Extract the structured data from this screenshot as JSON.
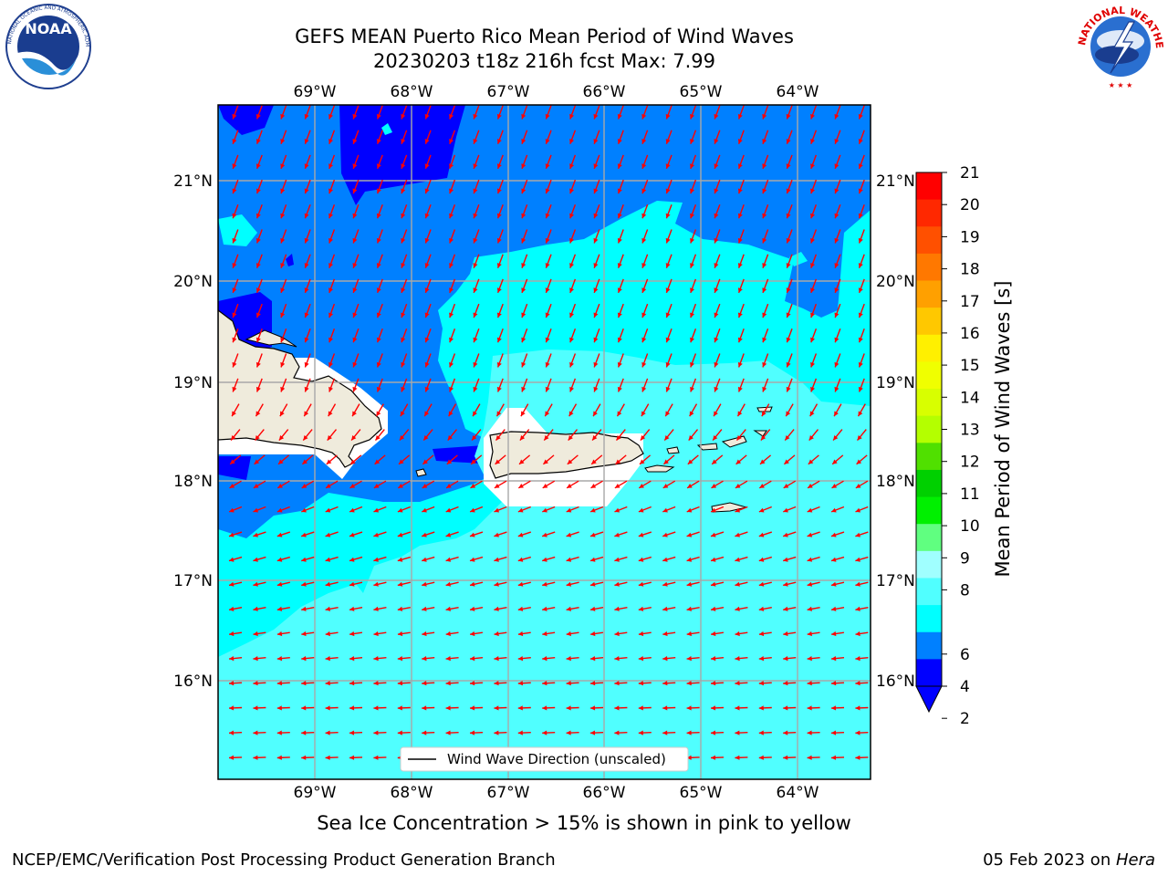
{
  "header": {
    "title_line1": "GEFS MEAN Puerto Rico Mean Period of Wind Waves",
    "title_line2": "20230203 t18z 216h fcst   Max: 7.99"
  },
  "logos": {
    "left": "NOAA",
    "left_ring_text": "NATIONAL OCEANIC AND ATMOSPHERIC ADMINISTRATION · U.S. DEPARTMENT OF COMMERCE",
    "right_ring_text": "NATIONAL WEATHER SERVICE"
  },
  "map": {
    "lon_labels": [
      "69°W",
      "68°W",
      "67°W",
      "66°W",
      "65°W",
      "64°W"
    ],
    "lat_labels": [
      "21°N",
      "20°N",
      "19°N",
      "18°N",
      "17°N",
      "16°N"
    ],
    "legend_label": "Wind Wave Direction (unscaled)",
    "arrow_color": "#ff0000",
    "land_color": "#efebdc",
    "ice_mask_color": "#ffffff"
  },
  "colorbar": {
    "label": "Mean Period of Wind Waves [s]",
    "ticks": [
      "21",
      "20",
      "19",
      "18",
      "17",
      "16",
      "15",
      "14",
      "13",
      "12",
      "11",
      "10",
      "9",
      "8",
      "6",
      "4",
      "2"
    ],
    "colors": [
      "#ff0000",
      "#ff2800",
      "#ff5000",
      "#ff7800",
      "#ffa000",
      "#ffc800",
      "#fff000",
      "#f0ff00",
      "#d8ff00",
      "#b4ff00",
      "#50e000",
      "#00d000",
      "#00f000",
      "#60ff80",
      "#a0ffff",
      "#50ffff",
      "#00ffff",
      "#0080ff",
      "#0000ff"
    ],
    "under_color": "#0000ff"
  },
  "footer": {
    "note": "Sea Ice Concentration > 15% is shown in pink to yellow",
    "left": "NCEP/EMC/Verification Post Processing Product Generation Branch",
    "right_date": "05 Feb 2023 on ",
    "right_host": "Hera"
  }
}
